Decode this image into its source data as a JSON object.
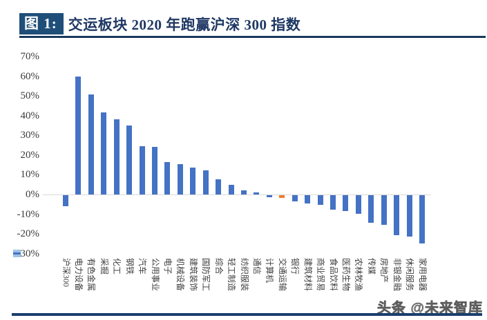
{
  "figure": {
    "label": "图 1:",
    "title": "交运板块 2020 年跑赢沪深 300 指数"
  },
  "watermark": "头条 @未来智库",
  "colors": {
    "bar_default": "#4472C4",
    "bar_highlight": "#ED7D31",
    "title_box_bg": "#1F4E79",
    "title_text": "#1F3864",
    "rule": "#17375E",
    "axis_line": "#D9D9D9",
    "tick_text": "#3a3a3a",
    "legend_marker_fill": "#9DC3E6",
    "legend_marker_line": "#4472C4"
  },
  "chart_data": {
    "type": "bar",
    "title": "交运板块 2020 年跑赢沪深 300 指数",
    "categories": [
      "沪深300",
      "电力设备",
      "有色金属",
      "采掘",
      "化工",
      "钢铁",
      "汽车",
      "公用事业",
      "电子",
      "机械设备",
      "建筑装饰",
      "国防军工",
      "综合",
      "轻工制造",
      "纺织服装",
      "通信",
      "计算机",
      "交通运输",
      "银行",
      "建筑材料",
      "商业贸易",
      "食品饮料",
      "医药生物",
      "农林牧渔",
      "传媒",
      "房地产",
      "非银金融",
      "休闲服务",
      "家用电器"
    ],
    "values": [
      -5.6,
      59.9,
      50.6,
      41.6,
      38.2,
      35.1,
      24.6,
      24.2,
      16.4,
      15.3,
      13.8,
      12.4,
      7.7,
      4.8,
      2.1,
      1.0,
      -1.0,
      -1.5,
      -3.2,
      -4.2,
      -4.9,
      -7.3,
      -8.0,
      -9.4,
      -13.9,
      -15.0,
      -20.2,
      -20.9,
      -24.4
    ],
    "highlight_category": "交通运输",
    "unit": "%",
    "xlabel": "",
    "ylabel": "",
    "ylim": [
      -30,
      70
    ],
    "ytick_step": 10,
    "ytick_labels": [
      "70%",
      "60%",
      "50%",
      "40%",
      "30%",
      "20%",
      "10%",
      "0%",
      "-10%",
      "-20%",
      "-30%"
    ],
    "y_axis_overlay_marker": {
      "at_label": "-30%",
      "shape": "blue-square-with-dash",
      "covers": "minus-sign"
    },
    "grid": false,
    "legend_position": "none",
    "bar_orientation": "vertical",
    "x_label_rotation_deg": 90
  }
}
